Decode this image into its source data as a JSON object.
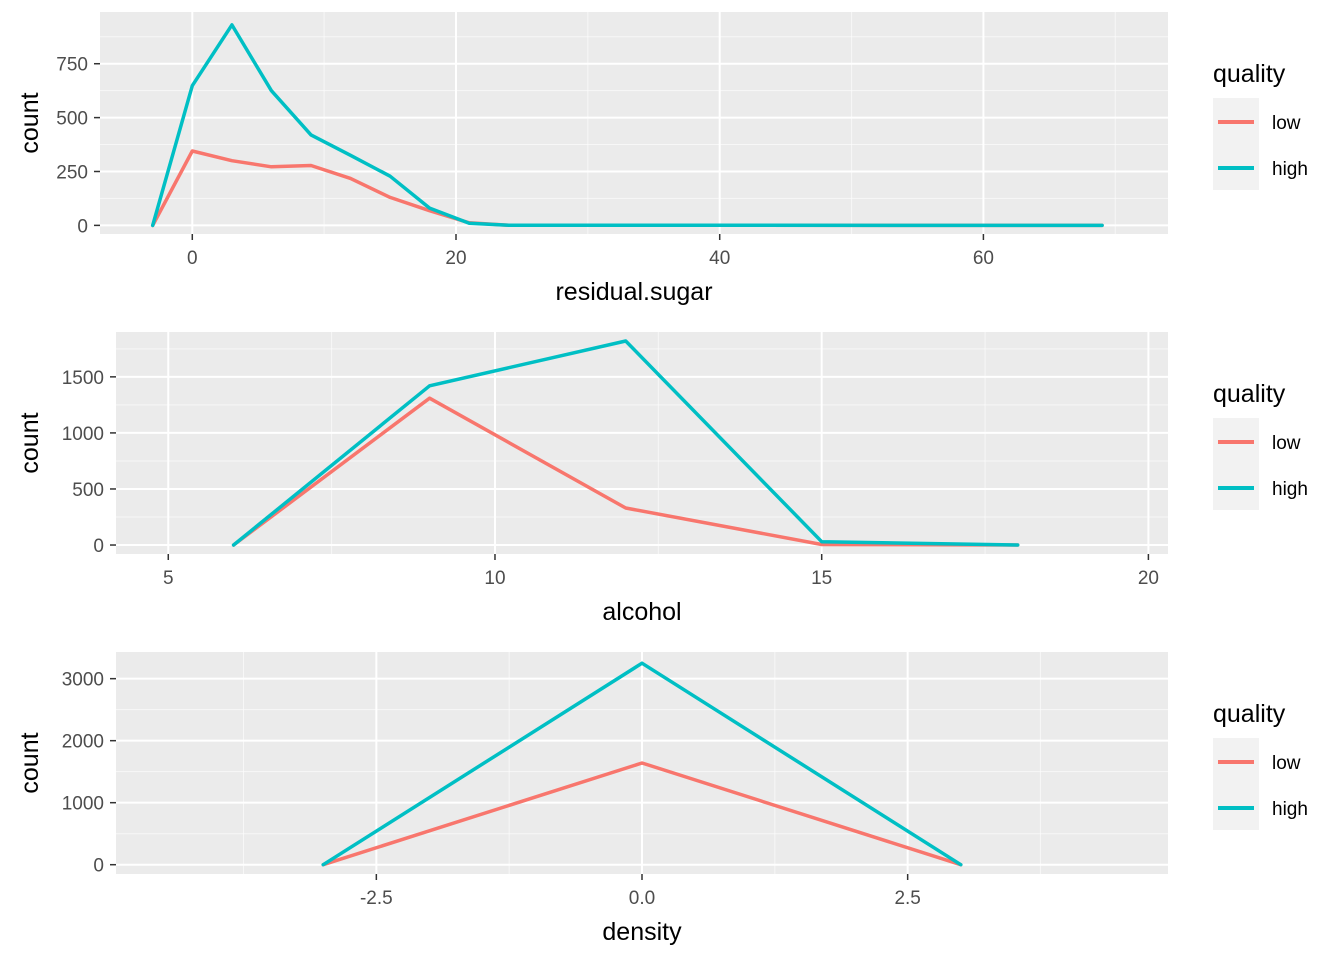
{
  "colors": {
    "low": "#F8766D",
    "high": "#00BFC4"
  },
  "chart_data": [
    {
      "type": "line",
      "xlabel": "residual.sugar",
      "ylabel": "count",
      "xlim": [
        -7,
        74
      ],
      "ylim": [
        -40,
        990
      ],
      "x_ticks": [
        0,
        20,
        40,
        60
      ],
      "x_tick_labels": [
        "0",
        "20",
        "40",
        "60"
      ],
      "y_ticks": [
        0,
        250,
        500,
        750
      ],
      "y_tick_labels": [
        "0",
        "250",
        "500",
        "750"
      ],
      "legend": {
        "title": "quality",
        "position": "right",
        "entries": [
          "low",
          "high"
        ]
      },
      "grid": true,
      "series": [
        {
          "name": "low",
          "x": [
            -3,
            0,
            3,
            6,
            9,
            12,
            15,
            18,
            21,
            24,
            69
          ],
          "y": [
            0,
            345,
            300,
            272,
            278,
            218,
            130,
            68,
            12,
            1,
            0
          ]
        },
        {
          "name": "high",
          "x": [
            -3,
            0,
            3,
            6,
            9,
            12,
            15,
            18,
            21,
            24,
            69
          ],
          "y": [
            0,
            648,
            930,
            625,
            420,
            325,
            228,
            80,
            10,
            1,
            0
          ]
        }
      ]
    },
    {
      "type": "line",
      "xlabel": "alcohol",
      "ylabel": "count",
      "xlim": [
        4.2,
        20.3
      ],
      "ylim": [
        -80,
        1900
      ],
      "x_ticks": [
        5,
        10,
        15,
        20
      ],
      "x_tick_labels": [
        "5",
        "10",
        "15",
        "20"
      ],
      "y_ticks": [
        0,
        500,
        1000,
        1500
      ],
      "y_tick_labels": [
        "0",
        "500",
        "1000",
        "1500"
      ],
      "legend": {
        "title": "quality",
        "position": "right",
        "entries": [
          "low",
          "high"
        ]
      },
      "grid": true,
      "series": [
        {
          "name": "low",
          "x": [
            6,
            9,
            12,
            15,
            18
          ],
          "y": [
            0,
            1310,
            330,
            5,
            0
          ]
        },
        {
          "name": "high",
          "x": [
            6,
            9,
            12,
            15,
            18
          ],
          "y": [
            0,
            1420,
            1820,
            30,
            0
          ]
        }
      ]
    },
    {
      "type": "line",
      "xlabel": "density",
      "ylabel": "count",
      "xlim": [
        -4.95,
        4.95
      ],
      "ylim": [
        -150,
        3430
      ],
      "x_ticks": [
        -2.5,
        0.0,
        2.5
      ],
      "x_tick_labels": [
        "-2.5",
        "0.0",
        "2.5"
      ],
      "y_ticks": [
        0,
        1000,
        2000,
        3000
      ],
      "y_tick_labels": [
        "0",
        "1000",
        "2000",
        "3000"
      ],
      "legend": {
        "title": "quality",
        "position": "right",
        "entries": [
          "low",
          "high"
        ]
      },
      "grid": true,
      "series": [
        {
          "name": "low",
          "x": [
            -3,
            0,
            3
          ],
          "y": [
            0,
            1640,
            0
          ]
        },
        {
          "name": "high",
          "x": [
            -3,
            0,
            3
          ],
          "y": [
            0,
            3250,
            0
          ]
        }
      ]
    }
  ]
}
